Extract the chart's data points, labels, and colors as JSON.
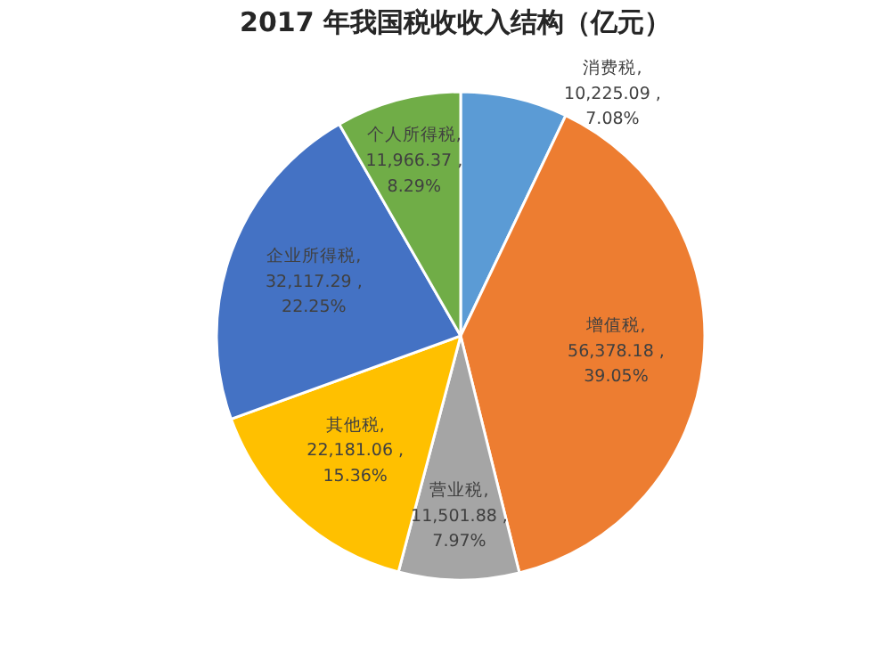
{
  "chart_data": {
    "type": "pie",
    "title": "2017 年我国税收收入结构（亿元）",
    "categories": [
      "消费税",
      "增值税",
      "营业税",
      "其他税",
      "企业所得税",
      "个人所得税"
    ],
    "values": [
      10225.09,
      56378.18,
      11501.88,
      22181.06,
      32117.29,
      11966.37
    ],
    "value_labels": [
      ",\n10,225.09 ,\n7.08%",
      ",\n56,378.18 ,\n39.05%",
      ",\n11,501.88 ,\n7.97%",
      ",\n22,181.06 ,\n15.36%",
      ",\n32,117.29 ,\n22.25%",
      ",\n11,966.37 ,\n8.29%"
    ],
    "colors": [
      "#5b9bd5",
      "#ed7d31",
      "#a5a5a5",
      "#ffc000",
      "#4472c4",
      "#70ad47"
    ]
  }
}
